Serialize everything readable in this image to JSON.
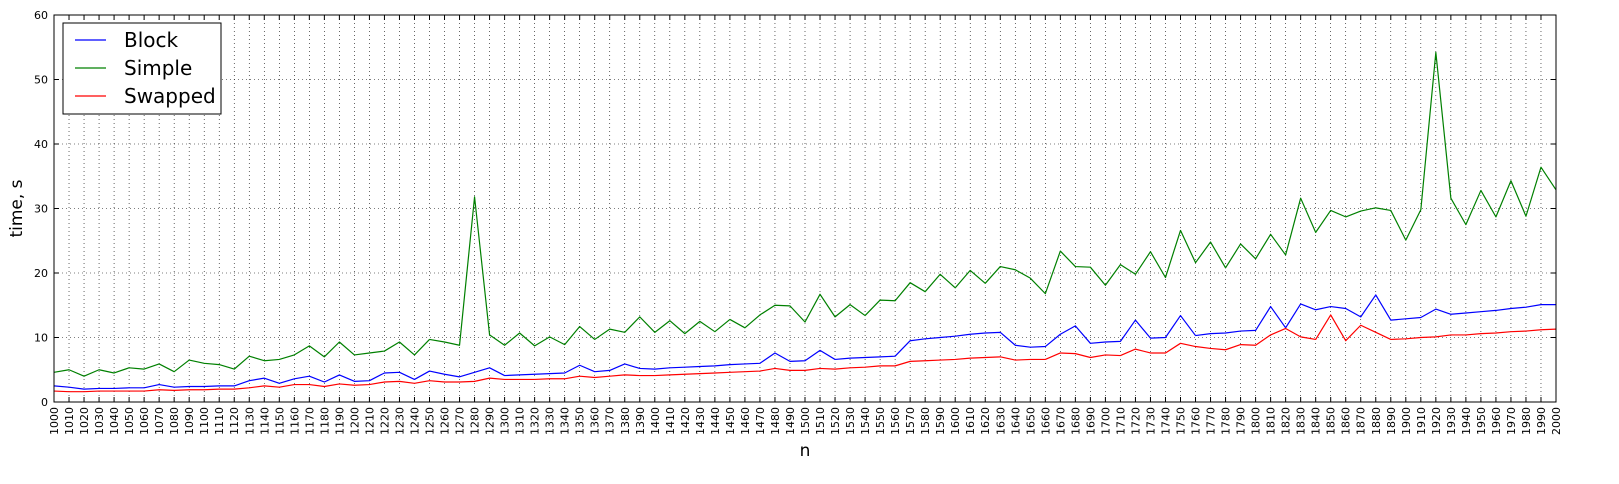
{
  "chart_data": {
    "type": "line",
    "title": "",
    "xlabel": "n",
    "ylabel": "time, s",
    "xlim": [
      1000,
      2000
    ],
    "ylim": [
      0,
      60
    ],
    "yticks": [
      0,
      10,
      20,
      30,
      40,
      50,
      60
    ],
    "xticks": [
      1000,
      1010,
      1020,
      1030,
      1040,
      1050,
      1060,
      1070,
      1080,
      1090,
      1100,
      1110,
      1120,
      1130,
      1140,
      1150,
      1160,
      1170,
      1180,
      1190,
      1200,
      1210,
      1220,
      1230,
      1240,
      1250,
      1260,
      1270,
      1280,
      1290,
      1300,
      1310,
      1320,
      1330,
      1340,
      1350,
      1360,
      1370,
      1380,
      1390,
      1400,
      1410,
      1420,
      1430,
      1440,
      1450,
      1460,
      1470,
      1480,
      1490,
      1500,
      1510,
      1520,
      1530,
      1540,
      1550,
      1560,
      1570,
      1580,
      1590,
      1600,
      1610,
      1620,
      1630,
      1640,
      1650,
      1660,
      1670,
      1680,
      1690,
      1700,
      1710,
      1720,
      1730,
      1740,
      1750,
      1760,
      1770,
      1780,
      1790,
      1800,
      1810,
      1820,
      1830,
      1840,
      1850,
      1860,
      1870,
      1880,
      1890,
      1900,
      1910,
      1920,
      1930,
      1940,
      1950,
      1960,
      1970,
      1980,
      1990,
      2000
    ],
    "grid": true,
    "legend_position": "top-left",
    "x": [
      1000,
      1010,
      1020,
      1030,
      1040,
      1050,
      1060,
      1070,
      1080,
      1090,
      1100,
      1110,
      1120,
      1130,
      1140,
      1150,
      1160,
      1170,
      1180,
      1190,
      1200,
      1210,
      1220,
      1230,
      1240,
      1250,
      1260,
      1270,
      1280,
      1290,
      1300,
      1310,
      1320,
      1330,
      1340,
      1350,
      1360,
      1370,
      1380,
      1390,
      1400,
      1410,
      1420,
      1430,
      1440,
      1450,
      1460,
      1470,
      1480,
      1490,
      1500,
      1510,
      1520,
      1530,
      1540,
      1550,
      1560,
      1570,
      1580,
      1590,
      1600,
      1610,
      1620,
      1630,
      1640,
      1650,
      1660,
      1670,
      1680,
      1690,
      1700,
      1710,
      1720,
      1730,
      1740,
      1750,
      1760,
      1770,
      1780,
      1790,
      1800,
      1810,
      1820,
      1830,
      1840,
      1850,
      1860,
      1870,
      1880,
      1890,
      1900,
      1910,
      1920,
      1930,
      1940,
      1950,
      1960,
      1970,
      1980,
      1990,
      2000
    ],
    "series": [
      {
        "name": "Block",
        "color": "#0000ff",
        "values": [
          2.5,
          2.3,
          2.0,
          2.1,
          2.1,
          2.2,
          2.2,
          2.7,
          2.3,
          2.4,
          2.4,
          2.5,
          2.5,
          3.3,
          3.7,
          2.9,
          3.6,
          4.0,
          3.1,
          4.2,
          3.2,
          3.3,
          4.5,
          4.6,
          3.5,
          4.8,
          4.3,
          3.9,
          4.6,
          5.3,
          4.1,
          4.2,
          4.3,
          4.4,
          4.5,
          5.7,
          4.7,
          4.9,
          5.9,
          5.2,
          5.1,
          5.3,
          5.4,
          5.5,
          5.6,
          5.8,
          5.9,
          6.0,
          7.6,
          6.3,
          6.4,
          8.0,
          6.6,
          6.8,
          6.9,
          7.0,
          7.1,
          9.5,
          9.8,
          10.0,
          10.2,
          10.5,
          10.7,
          10.8,
          8.8,
          8.5,
          8.6,
          10.5,
          11.8,
          9.1,
          9.3,
          9.4,
          12.7,
          9.9,
          10.0,
          13.4,
          10.3,
          10.6,
          10.7,
          11.0,
          11.1,
          14.8,
          11.5,
          15.2,
          14.3,
          14.8,
          14.5,
          13.2,
          16.6,
          12.7,
          12.9,
          13.1,
          14.4,
          13.6,
          13.8,
          14.0,
          14.2,
          14.5,
          14.7,
          15.1,
          15.1
        ]
      },
      {
        "name": "Simple",
        "color": "#008000",
        "values": [
          4.6,
          5.0,
          4.0,
          5.0,
          4.5,
          5.3,
          5.1,
          5.9,
          4.7,
          6.5,
          6.0,
          5.8,
          5.1,
          7.1,
          6.4,
          6.6,
          7.3,
          8.7,
          7.0,
          9.3,
          7.3,
          7.6,
          7.9,
          9.3,
          7.3,
          9.7,
          9.3,
          8.8,
          31.8,
          10.4,
          8.8,
          10.7,
          8.7,
          10.1,
          8.9,
          11.7,
          9.7,
          11.3,
          10.8,
          13.2,
          10.8,
          12.6,
          10.6,
          12.5,
          10.9,
          12.8,
          11.5,
          13.5,
          15.0,
          14.9,
          12.4,
          16.7,
          13.2,
          15.1,
          13.4,
          15.8,
          15.7,
          18.5,
          17.1,
          19.8,
          17.7,
          20.4,
          18.4,
          21.0,
          20.5,
          19.2,
          16.8,
          23.4,
          21.0,
          20.9,
          18.1,
          21.3,
          19.8,
          23.3,
          19.3,
          26.6,
          21.6,
          24.8,
          20.8,
          24.5,
          22.2,
          26.0,
          22.8,
          31.6,
          26.3,
          29.7,
          28.7,
          29.6,
          30.1,
          29.7,
          25.1,
          29.8,
          54.2,
          31.6,
          27.5,
          32.8,
          28.7,
          34.3,
          28.8,
          36.4,
          32.9
        ]
      },
      {
        "name": "Swapped",
        "color": "#ff0000",
        "values": [
          1.7,
          1.6,
          1.6,
          1.7,
          1.7,
          1.7,
          1.7,
          1.9,
          1.8,
          1.9,
          1.9,
          2.0,
          2.0,
          2.2,
          2.5,
          2.3,
          2.7,
          2.7,
          2.4,
          2.8,
          2.6,
          2.7,
          3.1,
          3.2,
          2.9,
          3.3,
          3.1,
          3.1,
          3.2,
          3.7,
          3.5,
          3.5,
          3.5,
          3.6,
          3.6,
          4.0,
          3.8,
          4.0,
          4.2,
          4.1,
          4.1,
          4.2,
          4.3,
          4.4,
          4.5,
          4.6,
          4.7,
          4.8,
          5.2,
          4.9,
          4.9,
          5.2,
          5.1,
          5.3,
          5.4,
          5.6,
          5.6,
          6.3,
          6.4,
          6.5,
          6.6,
          6.8,
          6.9,
          7.0,
          6.5,
          6.6,
          6.6,
          7.6,
          7.5,
          6.9,
          7.3,
          7.2,
          8.2,
          7.6,
          7.6,
          9.1,
          8.6,
          8.3,
          8.1,
          8.9,
          8.8,
          10.4,
          11.4,
          10.1,
          9.7,
          13.5,
          9.5,
          11.9,
          10.8,
          9.7,
          9.8,
          10.0,
          10.1,
          10.4,
          10.4,
          10.6,
          10.7,
          10.9,
          11.0,
          11.2,
          11.3
        ]
      }
    ]
  }
}
